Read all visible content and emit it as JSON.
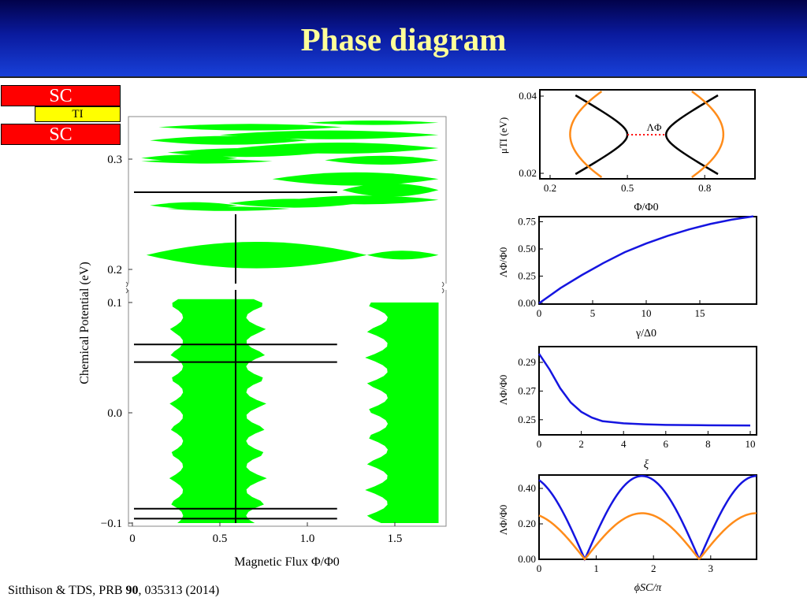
{
  "slide": {
    "title": "Phase diagram",
    "citation": {
      "authors": "Sitthison & TDS, PRB ",
      "volume": "90",
      "rest": ", 035313 (2014)"
    }
  },
  "schematic": {
    "top_label": "SC",
    "middle_label": "TI",
    "bottom_label": "SC",
    "colors": {
      "sc": "#ff0000",
      "ti": "#ffff00"
    }
  },
  "colors": {
    "green": "#00ff00",
    "blue": "#1515e0",
    "orange": "#ff8c1a",
    "red_dot": "#ff0000"
  },
  "chart_data": [
    {
      "type": "area",
      "description_visible": "main phase diagram, broken y-axis",
      "xlabel": "Magnetic Flux Φ/Φ0",
      "ylabel": "Chemical Potential (eV)",
      "xlim": [
        0,
        1.8
      ],
      "xticks": [
        "0",
        "0.5",
        "1.0",
        "1.5"
      ],
      "ylim_lower": [
        -0.1,
        0.1
      ],
      "ylim_upper": [
        0.2,
        0.33
      ],
      "yticks_lower": [
        "0.1",
        "0.0",
        "−0.1"
      ],
      "yticks_upper": [
        "0.3",
        "0.2"
      ],
      "vertical_line_x": 0.59,
      "horizontal_lines_mu": [
        0.27,
        0.062,
        0.046,
        -0.087,
        -0.096
      ],
      "lobe_centers_mu": [
        0.085,
        0.054,
        0.025,
        0.0,
        -0.026,
        -0.05,
        -0.073,
        -0.094
      ],
      "x_boundaries_flux": [
        0.12,
        1.05,
        1.31,
        1.75
      ]
    },
    {
      "type": "line",
      "xlabel": "Φ/Φ0",
      "ylabel": "μTI (eV)",
      "xticks": [
        "0.2",
        "0.5",
        "0.8"
      ],
      "yticks": [
        "0.04",
        "0.02"
      ],
      "xlim": [
        0.15,
        1.0
      ],
      "ylim": [
        0.02,
        0.04
      ],
      "annotation": "ΛΦ",
      "gap_endpoints_flux": [
        0.5,
        0.65
      ],
      "gap_mu": 0.03,
      "series": [
        {
          "color": "black"
        },
        {
          "color": "orange"
        }
      ]
    },
    {
      "type": "line",
      "xlabel": "γ/Δ0",
      "ylabel": "ΛΦ/Φ0",
      "xticks": [
        "0",
        "5",
        "10",
        "15"
      ],
      "yticks": [
        "0.75",
        "0.50",
        "0.25",
        "0.00"
      ],
      "xlim": [
        0,
        20
      ],
      "ylim": [
        0,
        0.8
      ],
      "series": [
        {
          "color": "blue",
          "x": [
            0,
            1,
            2,
            4,
            6,
            8,
            10,
            12,
            14,
            16,
            18,
            20
          ],
          "y": [
            0,
            0.07,
            0.14,
            0.26,
            0.37,
            0.47,
            0.55,
            0.62,
            0.68,
            0.73,
            0.77,
            0.8
          ]
        }
      ]
    },
    {
      "type": "line",
      "xlabel": "ξ",
      "ylabel": "ΛΦ/Φ0",
      "xticks": [
        "0",
        "2",
        "4",
        "6",
        "8",
        "10"
      ],
      "yticks": [
        "0.29",
        "0.27",
        "0.25"
      ],
      "xlim": [
        0,
        10.2
      ],
      "ylim": [
        0.244,
        0.296
      ],
      "series": [
        {
          "color": "blue",
          "x": [
            0,
            0.5,
            1,
            1.5,
            2,
            2.5,
            3,
            4,
            5,
            6,
            8,
            10
          ],
          "y": [
            0.296,
            0.285,
            0.272,
            0.262,
            0.2555,
            0.2515,
            0.249,
            0.2475,
            0.2468,
            0.2464,
            0.2461,
            0.246
          ]
        }
      ]
    },
    {
      "type": "line",
      "xlabel": "ϕSC/π",
      "ylabel": "ΛΦ/Φ0",
      "xticks": [
        "0",
        "1",
        "2",
        "3"
      ],
      "yticks": [
        "0.40",
        "0.20",
        "0.00"
      ],
      "xlim": [
        0,
        3.8
      ],
      "ylim": [
        0,
        0.5
      ],
      "series": [
        {
          "color": "blue",
          "period": 2,
          "zeros": [
            0.8,
            2.8
          ],
          "peak": 0.47
        },
        {
          "color": "orange",
          "period": 2,
          "zeros": [
            0.8,
            2.8
          ],
          "peak": 0.26
        }
      ]
    }
  ]
}
